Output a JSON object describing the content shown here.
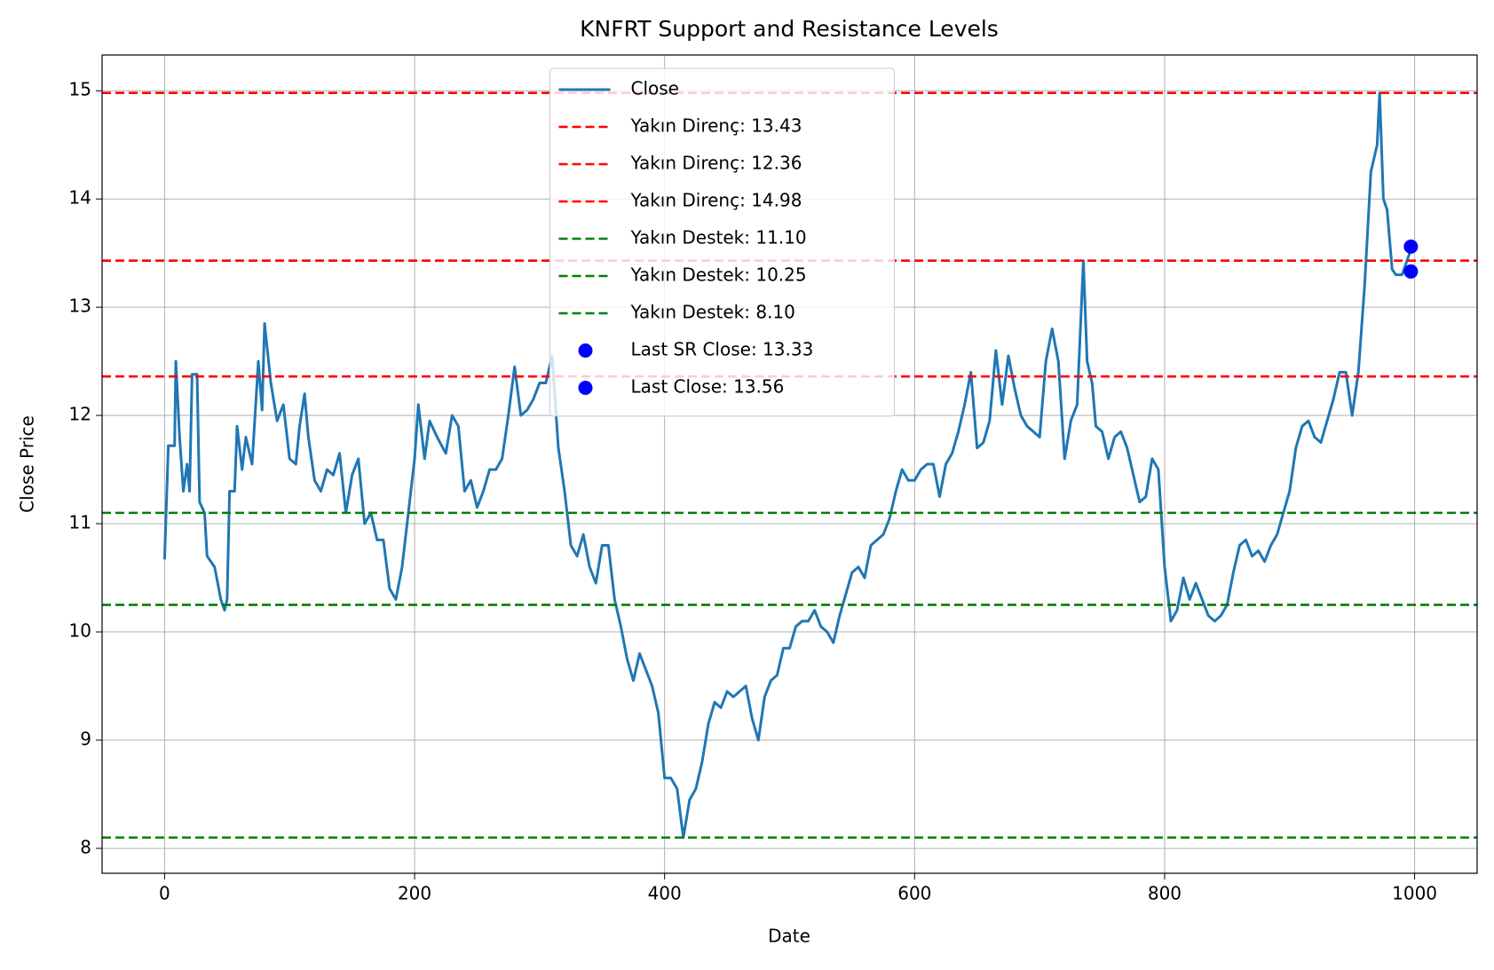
{
  "chart_data": {
    "type": "line",
    "title": "KNFRT Support and Resistance Levels",
    "x_label": "Date",
    "y_label": "Close Price",
    "x": [
      0,
      3,
      8,
      9,
      12,
      15,
      18,
      20,
      22,
      26,
      28,
      32,
      34,
      40,
      45,
      48,
      50,
      52,
      56,
      58,
      62,
      65,
      70,
      75,
      78,
      80,
      85,
      90,
      95,
      100,
      105,
      108,
      112,
      115,
      120,
      125,
      130,
      135,
      140,
      145,
      150,
      155,
      160,
      165,
      170,
      175,
      180,
      185,
      190,
      195,
      200,
      203,
      208,
      212,
      218,
      225,
      230,
      235,
      240,
      245,
      250,
      255,
      260,
      265,
      270,
      275,
      280,
      285,
      290,
      295,
      300,
      305,
      310,
      315,
      320,
      325,
      330,
      335,
      340,
      345,
      350,
      355,
      360,
      365,
      370,
      375,
      380,
      385,
      390,
      395,
      400,
      405,
      410,
      415,
      420,
      425,
      430,
      435,
      440,
      445,
      450,
      455,
      460,
      465,
      470,
      475,
      480,
      485,
      490,
      495,
      500,
      505,
      510,
      515,
      520,
      525,
      530,
      535,
      540,
      545,
      550,
      555,
      560,
      565,
      570,
      575,
      580,
      585,
      590,
      595,
      600,
      605,
      610,
      615,
      620,
      625,
      630,
      635,
      640,
      645,
      650,
      655,
      660,
      665,
      670,
      675,
      680,
      685,
      690,
      695,
      700,
      705,
      710,
      715,
      720,
      725,
      730,
      735,
      738,
      742,
      745,
      750,
      755,
      760,
      765,
      770,
      775,
      780,
      785,
      790,
      795,
      800,
      805,
      810,
      815,
      820,
      825,
      830,
      835,
      840,
      845,
      850,
      855,
      860,
      865,
      870,
      875,
      880,
      885,
      890,
      895,
      900,
      905,
      910,
      915,
      920,
      925,
      930,
      935,
      940,
      945,
      950,
      955,
      960,
      965,
      970,
      972,
      975,
      978,
      982,
      985,
      990,
      993,
      996,
      998
    ],
    "series": [
      {
        "name": "Close",
        "color": "#1f77b4",
        "values": [
          10.67,
          11.72,
          11.72,
          12.5,
          11.8,
          11.3,
          11.55,
          11.3,
          12.38,
          12.38,
          11.2,
          11.1,
          10.7,
          10.6,
          10.3,
          10.2,
          10.3,
          11.3,
          11.3,
          11.9,
          11.5,
          11.8,
          11.55,
          12.5,
          12.05,
          12.85,
          12.3,
          11.95,
          12.1,
          11.6,
          11.55,
          11.9,
          12.2,
          11.8,
          11.4,
          11.3,
          11.5,
          11.45,
          11.65,
          11.1,
          11.45,
          11.6,
          11.0,
          11.1,
          10.85,
          10.85,
          10.4,
          10.3,
          10.6,
          11.1,
          11.6,
          12.1,
          11.6,
          11.95,
          11.8,
          11.65,
          12.0,
          11.9,
          11.3,
          11.4,
          11.15,
          11.3,
          11.5,
          11.5,
          11.6,
          12.0,
          12.45,
          12.0,
          12.05,
          12.15,
          12.3,
          12.3,
          12.55,
          11.7,
          11.3,
          10.8,
          10.7,
          10.9,
          10.6,
          10.45,
          10.8,
          10.8,
          10.3,
          10.05,
          9.75,
          9.55,
          9.8,
          9.65,
          9.5,
          9.25,
          8.65,
          8.65,
          8.55,
          8.1,
          8.45,
          8.55,
          8.8,
          9.15,
          9.35,
          9.3,
          9.45,
          9.4,
          9.45,
          9.5,
          9.2,
          9.0,
          9.4,
          9.55,
          9.6,
          9.85,
          9.85,
          10.05,
          10.1,
          10.1,
          10.2,
          10.05,
          10.0,
          9.9,
          10.15,
          10.35,
          10.55,
          10.6,
          10.5,
          10.8,
          10.85,
          10.9,
          11.05,
          11.3,
          11.5,
          11.4,
          11.4,
          11.5,
          11.55,
          11.55,
          11.25,
          11.55,
          11.65,
          11.85,
          12.1,
          12.4,
          11.7,
          11.75,
          11.95,
          12.6,
          12.1,
          12.55,
          12.25,
          12.0,
          11.9,
          11.85,
          11.8,
          12.5,
          12.8,
          12.5,
          11.6,
          11.95,
          12.1,
          13.43,
          12.5,
          12.3,
          11.9,
          11.85,
          11.6,
          11.8,
          11.85,
          11.7,
          11.45,
          11.2,
          11.25,
          11.6,
          11.5,
          10.6,
          10.1,
          10.2,
          10.5,
          10.3,
          10.45,
          10.3,
          10.15,
          10.1,
          10.15,
          10.25,
          10.55,
          10.8,
          10.85,
          10.7,
          10.75,
          10.65,
          10.8,
          10.9,
          11.1,
          11.3,
          11.7,
          11.9,
          11.95,
          11.8,
          11.75,
          11.95,
          12.15,
          12.4,
          12.4,
          12.0,
          12.4,
          13.2,
          14.25,
          14.5,
          14.98,
          14.0,
          13.9,
          13.35,
          13.3,
          13.3,
          13.4,
          13.5,
          13.56
        ]
      }
    ],
    "hlines": [
      {
        "name": "Yakın Direnç: 13.43",
        "color": "#ff0000",
        "value": 13.43
      },
      {
        "name": "Yakın Direnç: 12.36",
        "color": "#ff0000",
        "value": 12.36
      },
      {
        "name": "Yakın Direnç: 14.98",
        "color": "#ff0000",
        "value": 14.98
      },
      {
        "name": "Yakın Destek: 11.10",
        "color": "#008000",
        "value": 11.1
      },
      {
        "name": "Yakın Destek: 10.25",
        "color": "#008000",
        "value": 10.25
      },
      {
        "name": "Yakın Destek: 8.10",
        "color": "#008000",
        "value": 8.1
      }
    ],
    "points": [
      {
        "name": "Last SR Close: 13.33",
        "color": "#0000ff",
        "x": 997,
        "y": 13.33
      },
      {
        "name": "Last Close: 13.56",
        "color": "#0000ff",
        "x": 997,
        "y": 13.56
      }
    ],
    "xlim": [
      -50,
      1050
    ],
    "ylim": [
      7.77,
      15.33
    ],
    "xticks": [
      0,
      200,
      400,
      600,
      800,
      1000
    ],
    "yticks": [
      8,
      9,
      10,
      11,
      12,
      13,
      14,
      15
    ],
    "grid": true,
    "legend": "upper center"
  }
}
